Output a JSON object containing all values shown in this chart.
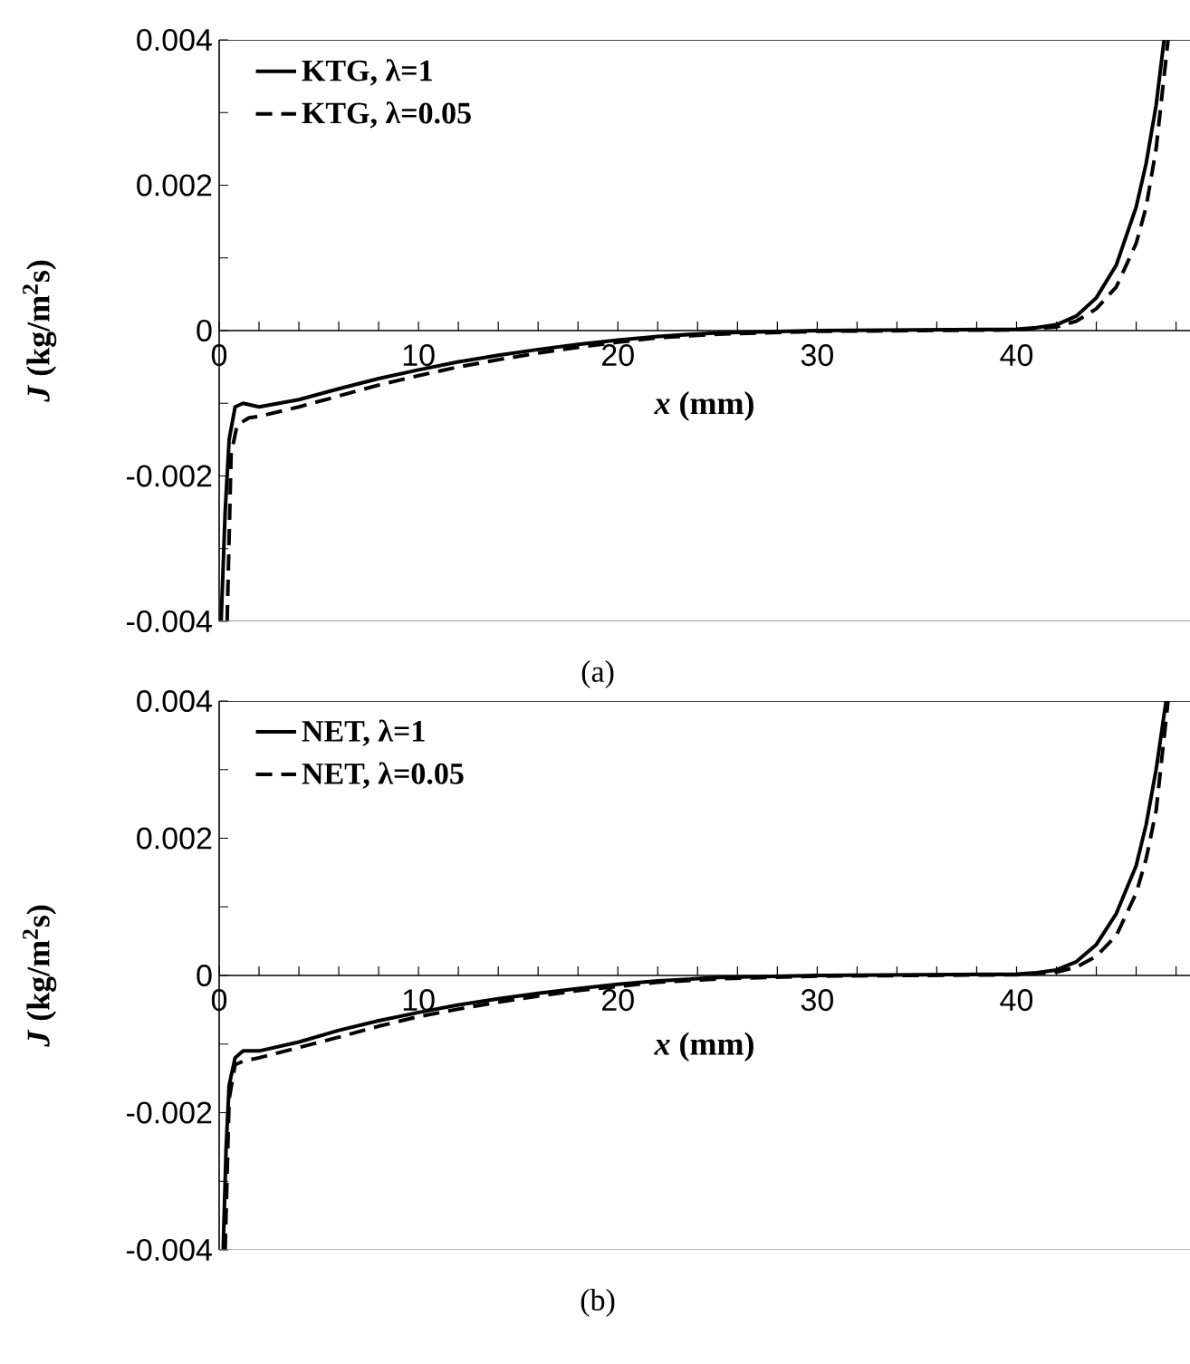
{
  "chart_data": [
    {
      "type": "line",
      "title": "(a)",
      "xlabel": "*x* (mm)",
      "ylabel": "*J* (kg/m$^{2}$s)",
      "legend": "top left",
      "xlim": [
        0,
        48.7
      ],
      "ylim": [
        -0.004,
        0.004
      ],
      "xticks": [
        0,
        {
          "value": 2,
          "label": null
        },
        {
          "value": 4,
          "label": null
        },
        {
          "value": 6,
          "label": null
        },
        {
          "value": 8,
          "label": null
        },
        10,
        {
          "value": 12,
          "label": null
        },
        {
          "value": 14,
          "label": null
        },
        {
          "value": 16,
          "label": null
        },
        {
          "value": 18,
          "label": null
        },
        20,
        {
          "value": 22,
          "label": null
        },
        {
          "value": 24,
          "label": null
        },
        {
          "value": 26,
          "label": null
        },
        {
          "value": 28,
          "label": null
        },
        30,
        {
          "value": 32,
          "label": null
        },
        {
          "value": 34,
          "label": null
        },
        {
          "value": 36,
          "label": null
        },
        {
          "value": 38,
          "label": null
        },
        40,
        {
          "value": 42,
          "label": null
        },
        {
          "value": 44,
          "label": null
        },
        {
          "value": 46,
          "label": null
        },
        {
          "value": 48,
          "label": null
        }
      ],
      "yticks": [
        -0.004,
        {
          "value": -0.003,
          "label": null
        },
        -0.002,
        {
          "value": -0.001,
          "label": null
        },
        0,
        {
          "value": 0.001,
          "label": null
        },
        0.002,
        {
          "value": 0.003,
          "label": null
        },
        0.004
      ],
      "series": [
        {
          "name": "KTG, λ=1",
          "color": "#000000",
          "line_style": "solid",
          "x": [
            0.1,
            0.3,
            0.5,
            0.8,
            1.2,
            2,
            4,
            6,
            8,
            10,
            12,
            14,
            16,
            18,
            20,
            22,
            25,
            30,
            35,
            40,
            41,
            42,
            43,
            44,
            45,
            46,
            46.5,
            47,
            47.4
          ],
          "values": [
            -0.004,
            -0.0025,
            -0.0015,
            -0.00105,
            -0.001,
            -0.00105,
            -0.00095,
            -0.0008,
            -0.00066,
            -0.00054,
            -0.00043,
            -0.00034,
            -0.00026,
            -0.00019,
            -0.00013,
            -8e-05,
            -3e-05,
            0,
            1e-05,
            2e-05,
            4e-05,
            8e-05,
            0.0002,
            0.00045,
            0.0009,
            0.0017,
            0.0023,
            0.0031,
            0.004
          ]
        },
        {
          "name": "KTG, λ=0.05",
          "color": "#000000",
          "line_style": "dashed",
          "x": [
            0.4,
            0.6,
            0.9,
            1.5,
            2,
            4,
            6,
            8,
            10,
            12,
            14,
            16,
            18,
            20,
            22,
            25,
            30,
            35,
            40,
            42,
            43,
            44,
            45,
            46,
            46.5,
            47,
            47.6
          ],
          "values": [
            -0.004,
            -0.0017,
            -0.0013,
            -0.0012,
            -0.00118,
            -0.00105,
            -0.0009,
            -0.00075,
            -0.00062,
            -0.0005,
            -0.0004,
            -0.00031,
            -0.00023,
            -0.00016,
            -0.0001,
            -5e-05,
            -1e-05,
            0,
            1e-05,
            5e-05,
            0.00013,
            0.0003,
            0.0006,
            0.0012,
            0.0017,
            0.0025,
            0.004
          ]
        }
      ]
    },
    {
      "type": "line",
      "title": "(b)",
      "xlabel": "*x* (mm)",
      "ylabel": "*J* (kg/m$^{2}$s)",
      "legend": "top left",
      "xlim": [
        0,
        48.7
      ],
      "ylim": [
        -0.004,
        0.004
      ],
      "xticks": [
        0,
        {
          "value": 2,
          "label": null
        },
        {
          "value": 4,
          "label": null
        },
        {
          "value": 6,
          "label": null
        },
        {
          "value": 8,
          "label": null
        },
        10,
        {
          "value": 12,
          "label": null
        },
        {
          "value": 14,
          "label": null
        },
        {
          "value": 16,
          "label": null
        },
        {
          "value": 18,
          "label": null
        },
        20,
        {
          "value": 22,
          "label": null
        },
        {
          "value": 24,
          "label": null
        },
        {
          "value": 26,
          "label": null
        },
        {
          "value": 28,
          "label": null
        },
        30,
        {
          "value": 32,
          "label": null
        },
        {
          "value": 34,
          "label": null
        },
        {
          "value": 36,
          "label": null
        },
        {
          "value": 38,
          "label": null
        },
        40,
        {
          "value": 42,
          "label": null
        },
        {
          "value": 44,
          "label": null
        },
        {
          "value": 46,
          "label": null
        },
        {
          "value": 48,
          "label": null
        }
      ],
      "yticks": [
        -0.004,
        {
          "value": -0.003,
          "label": null
        },
        -0.002,
        {
          "value": -0.001,
          "label": null
        },
        0,
        {
          "value": 0.001,
          "label": null
        },
        0.002,
        {
          "value": 0.003,
          "label": null
        },
        0.004
      ],
      "series": [
        {
          "name": "NET, λ=1",
          "color": "#000000",
          "line_style": "solid",
          "x": [
            0.2,
            0.35,
            0.5,
            0.8,
            1.2,
            2,
            4,
            6,
            8,
            10,
            12,
            14,
            16,
            18,
            20,
            22,
            25,
            30,
            35,
            40,
            41,
            42,
            43,
            44,
            45,
            46,
            46.5,
            47,
            47.5
          ],
          "values": [
            -0.004,
            -0.0025,
            -0.0016,
            -0.0012,
            -0.0011,
            -0.0011,
            -0.00097,
            -0.0008,
            -0.00066,
            -0.00054,
            -0.00043,
            -0.00034,
            -0.00026,
            -0.00019,
            -0.00013,
            -8e-05,
            -3e-05,
            0,
            1e-05,
            2e-05,
            4e-05,
            8e-05,
            0.0002,
            0.00045,
            0.0009,
            0.0016,
            0.0022,
            0.003,
            0.004
          ]
        },
        {
          "name": "NET, λ=0.05",
          "color": "#000000",
          "line_style": "dashed",
          "x": [
            0.3,
            0.5,
            0.8,
            1.2,
            2,
            4,
            6,
            8,
            10,
            12,
            14,
            16,
            18,
            20,
            22,
            25,
            30,
            35,
            40,
            42,
            43,
            44,
            45,
            46,
            46.5,
            47,
            47.6
          ],
          "values": [
            -0.004,
            -0.0018,
            -0.0013,
            -0.00125,
            -0.0012,
            -0.00105,
            -0.0009,
            -0.00074,
            -0.0006,
            -0.00049,
            -0.00039,
            -0.0003,
            -0.00022,
            -0.00016,
            -0.0001,
            -5e-05,
            -1e-05,
            0,
            1e-05,
            5e-05,
            0.00012,
            0.00028,
            0.00058,
            0.0012,
            0.0017,
            0.0024,
            0.004
          ]
        }
      ]
    }
  ]
}
